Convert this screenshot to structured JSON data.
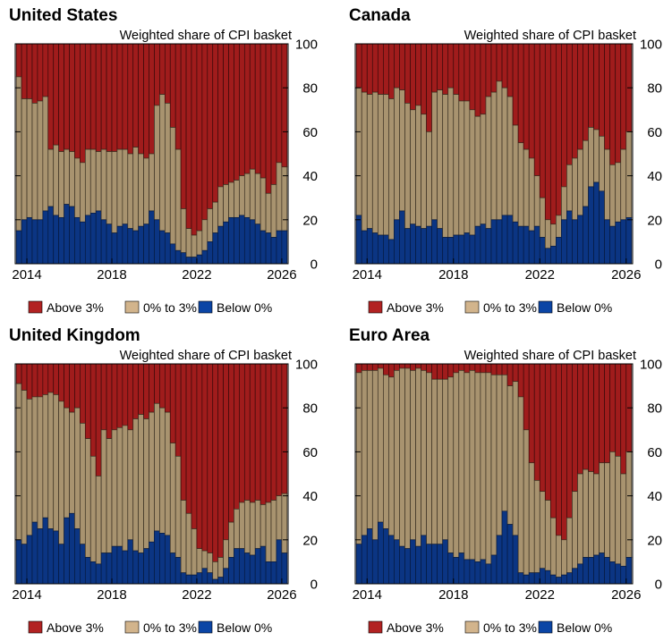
{
  "chart_data": [
    {
      "type": "bar",
      "stacked": true,
      "title": "United States",
      "ylabel": "Weighted share of CPI basket",
      "ylim": [
        0,
        100
      ],
      "yticks": [
        0,
        20,
        40,
        60,
        80,
        100
      ],
      "xticks": [
        2014,
        2018,
        2022,
        2026
      ],
      "x_start": "2013Q3",
      "frequency": "quarterly (approximated from monthly bars)",
      "legend": [
        "Above 3%",
        "0% to 3%",
        "Below 0%"
      ],
      "legend_position": "bottom",
      "series": [
        {
          "name": "Below 0%",
          "values": [
            15,
            20,
            21,
            20,
            20,
            24,
            26,
            22,
            21,
            27,
            26,
            21,
            19,
            22,
            23,
            24,
            20,
            18,
            14,
            17,
            18,
            16,
            15,
            17,
            18,
            24,
            20,
            15,
            14,
            9,
            6,
            5,
            3,
            3,
            4,
            6,
            10,
            14,
            17,
            19,
            21,
            21,
            22,
            21,
            20,
            18,
            15,
            14,
            12,
            15,
            15
          ]
        },
        {
          "name": "0% to 3%",
          "values": [
            70,
            55,
            54,
            53,
            54,
            52,
            26,
            32,
            30,
            25,
            25,
            27,
            27,
            30,
            29,
            27,
            32,
            33,
            37,
            35,
            34,
            34,
            38,
            33,
            30,
            26,
            52,
            62,
            59,
            53,
            46,
            20,
            13,
            10,
            11,
            14,
            15,
            14,
            18,
            17,
            16,
            17,
            18,
            20,
            23,
            23,
            24,
            18,
            24,
            31,
            29
          ]
        }
      ]
    },
    {
      "type": "bar",
      "stacked": true,
      "title": "Canada",
      "ylabel": "Weighted share of CPI basket",
      "ylim": [
        0,
        100
      ],
      "yticks": [
        0,
        20,
        40,
        60,
        80,
        100
      ],
      "xticks": [
        2014,
        2018,
        2022,
        2026
      ],
      "x_start": "2013Q3",
      "frequency": "quarterly (approximated from monthly bars)",
      "legend": [
        "Above 3%",
        "0% to 3%",
        "Below 0%"
      ],
      "legend_position": "bottom",
      "series": [
        {
          "name": "Below 0%",
          "values": [
            22,
            15,
            16,
            14,
            13,
            13,
            11,
            20,
            24,
            16,
            18,
            17,
            16,
            17,
            20,
            16,
            12,
            12,
            13,
            13,
            14,
            13,
            17,
            18,
            16,
            20,
            20,
            22,
            22,
            19,
            17,
            17,
            15,
            17,
            12,
            7,
            8,
            12,
            20,
            24,
            20,
            22,
            26,
            35,
            37,
            33,
            20,
            17,
            19,
            20,
            21
          ]
        },
        {
          "name": "0% to 3%",
          "values": [
            58,
            63,
            61,
            64,
            64,
            64,
            64,
            60,
            55,
            57,
            52,
            55,
            52,
            43,
            58,
            63,
            65,
            68,
            64,
            61,
            60,
            57,
            50,
            50,
            60,
            58,
            63,
            58,
            54,
            44,
            38,
            35,
            33,
            23,
            18,
            13,
            10,
            10,
            15,
            21,
            28,
            30,
            30,
            27,
            24,
            25,
            32,
            28,
            27,
            32,
            39
          ]
        }
      ]
    },
    {
      "type": "bar",
      "stacked": true,
      "title": "United Kingdom",
      "ylabel": "Weighted share of CPI basket",
      "ylim": [
        0,
        100
      ],
      "yticks": [
        0,
        20,
        40,
        60,
        80,
        100
      ],
      "xticks": [
        2014,
        2018,
        2022,
        2026
      ],
      "x_start": "2013Q3",
      "frequency": "quarterly (approximated from monthly bars)",
      "legend": [
        "Above 3%",
        "0% to 3%",
        "Below 0%"
      ],
      "legend_position": "bottom",
      "series": [
        {
          "name": "Below 0%",
          "values": [
            20,
            18,
            22,
            28,
            25,
            30,
            25,
            24,
            18,
            30,
            32,
            25,
            18,
            12,
            10,
            9,
            14,
            14,
            17,
            17,
            15,
            20,
            15,
            14,
            16,
            19,
            24,
            23,
            22,
            14,
            12,
            5,
            4,
            4,
            5,
            7,
            5,
            2,
            3,
            7,
            12,
            16,
            16,
            14,
            13,
            16,
            17,
            10,
            10,
            20,
            14
          ]
        },
        {
          "name": "0% to 3%",
          "values": [
            71,
            70,
            62,
            57,
            60,
            56,
            62,
            62,
            65,
            50,
            46,
            55,
            55,
            54,
            48,
            40,
            56,
            52,
            53,
            54,
            57,
            50,
            60,
            63,
            59,
            59,
            58,
            57,
            56,
            50,
            46,
            33,
            28,
            21,
            11,
            8,
            9,
            8,
            9,
            13,
            16,
            18,
            21,
            24,
            24,
            22,
            19,
            27,
            28,
            20,
            27
          ]
        }
      ]
    },
    {
      "type": "bar",
      "stacked": true,
      "title": "Euro Area",
      "ylabel": "Weighted share of CPI basket",
      "ylim": [
        0,
        100
      ],
      "yticks": [
        0,
        20,
        40,
        60,
        80,
        100
      ],
      "xticks": [
        2014,
        2018,
        2022,
        2026
      ],
      "x_start": "2013Q3",
      "frequency": "quarterly (approximated from monthly bars)",
      "legend": [
        "Above 3%",
        "0% to 3%",
        "Below 0%"
      ],
      "legend_position": "bottom",
      "series": [
        {
          "name": "Below 0%",
          "values": [
            18,
            22,
            25,
            20,
            28,
            25,
            22,
            20,
            17,
            16,
            20,
            17,
            22,
            18,
            18,
            18,
            20,
            14,
            12,
            14,
            11,
            11,
            10,
            11,
            9,
            13,
            22,
            33,
            27,
            22,
            5,
            4,
            5,
            5,
            7,
            6,
            4,
            3,
            4,
            5,
            7,
            9,
            12,
            12,
            13,
            14,
            12,
            10,
            9,
            8,
            12
          ]
        },
        {
          "name": "0% to 3%",
          "values": [
            78,
            75,
            72,
            77,
            70,
            70,
            72,
            77,
            81,
            82,
            77,
            81,
            75,
            78,
            75,
            75,
            73,
            80,
            84,
            83,
            85,
            86,
            86,
            85,
            87,
            82,
            73,
            62,
            63,
            70,
            80,
            66,
            50,
            42,
            35,
            32,
            26,
            19,
            16,
            25,
            35,
            41,
            40,
            39,
            37,
            41,
            43,
            50,
            49,
            42,
            48
          ]
        }
      ]
    }
  ],
  "colors": {
    "above": "#a01c1c",
    "mid": "#a8936f",
    "below": "#0b3583",
    "legend_above": "#b22222",
    "legend_mid": "#d2b48c",
    "legend_below": "#0b45a5"
  }
}
